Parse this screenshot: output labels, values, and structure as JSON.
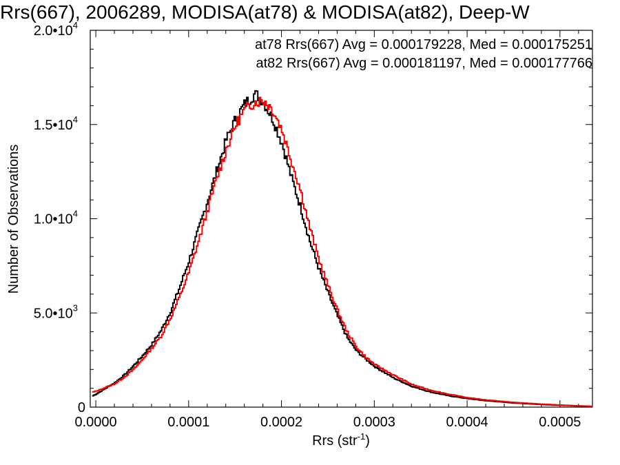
{
  "chart_data": {
    "type": "line",
    "title": "Rrs(667), 2006289, MODISA(at78) & MODISA(at82), Deep-W",
    "xlabel": "Rrs (str",
    "xlabel_sup": "-1",
    "xlabel_close": ")",
    "ylabel": "Number of Observations",
    "xlim": [
      -6e-06,
      0.000535
    ],
    "ylim": [
      0,
      20000
    ],
    "x_ticks": [
      {
        "value": 0.0,
        "label": "0.0000"
      },
      {
        "value": 0.0001,
        "label": "0.0001"
      },
      {
        "value": 0.0002,
        "label": "0.0002"
      },
      {
        "value": 0.0003,
        "label": "0.0003"
      },
      {
        "value": 0.0004,
        "label": "0.0004"
      },
      {
        "value": 0.0005,
        "label": "0.0005"
      }
    ],
    "y_ticks": [
      {
        "value": 0,
        "mant": "0",
        "exp": ""
      },
      {
        "value": 5000,
        "mant": "5.0•10",
        "exp": "3"
      },
      {
        "value": 10000,
        "mant": "1.0•10",
        "exp": "4"
      },
      {
        "value": 15000,
        "mant": "1.5•10",
        "exp": "4"
      },
      {
        "value": 20000,
        "mant": "2.0•10",
        "exp": "4"
      }
    ],
    "legend_position": "top-right",
    "series": [
      {
        "name": "at78",
        "legend": "at78 Rrs(667) Avg = 0.000179228, Med = 0.000175251",
        "color": "#000000",
        "x": [
          -4e-06,
          0.0,
          1e-05,
          2e-05,
          3e-05,
          4e-05,
          5e-05,
          6e-05,
          7e-05,
          8e-05,
          9e-05,
          0.0001,
          0.00011,
          0.00012,
          0.00013,
          0.00014,
          0.00015,
          0.00016,
          0.00017,
          0.000175,
          0.00018,
          0.00019,
          0.0002,
          0.00021,
          0.00022,
          0.00023,
          0.00024,
          0.00025,
          0.00026,
          0.00027,
          0.00028,
          0.00029,
          0.0003,
          0.00032,
          0.00034,
          0.00036,
          0.00038,
          0.0004,
          0.00042,
          0.00045,
          0.00048,
          0.0005,
          0.00052,
          0.000535
        ],
        "y": [
          600,
          700,
          1000,
          1300,
          1700,
          2200,
          2750,
          3350,
          4100,
          5100,
          6400,
          7800,
          9400,
          11000,
          12600,
          14200,
          15300,
          16100,
          16600,
          16500,
          16200,
          15300,
          14000,
          12200,
          10600,
          8800,
          7300,
          6000,
          4800,
          3700,
          3000,
          2550,
          2150,
          1550,
          1100,
          800,
          600,
          450,
          340,
          220,
          140,
          100,
          60,
          40
        ]
      },
      {
        "name": "at82",
        "legend": "at82 Rrs(667) Avg = 0.000181197, Med = 0.000177766",
        "color": "#ff0000",
        "x": [
          -4e-06,
          0.0,
          1e-05,
          2e-05,
          3e-05,
          4e-05,
          5e-05,
          6e-05,
          7e-05,
          8e-05,
          9e-05,
          0.0001,
          0.00011,
          0.00012,
          0.00013,
          0.00014,
          0.00015,
          0.00016,
          0.00017,
          0.00018,
          0.00019,
          0.0002,
          0.00021,
          0.00022,
          0.00023,
          0.00024,
          0.00025,
          0.00026,
          0.00027,
          0.00028,
          0.00029,
          0.0003,
          0.00032,
          0.00034,
          0.00036,
          0.00038,
          0.0004,
          0.00042,
          0.00045,
          0.00048,
          0.0005,
          0.00052,
          0.000535
        ],
        "y": [
          800,
          850,
          1050,
          1250,
          1600,
          2000,
          2550,
          3150,
          3800,
          4750,
          5900,
          7200,
          8800,
          10500,
          12200,
          13700,
          15000,
          15800,
          16200,
          16300,
          15800,
          14700,
          13100,
          11500,
          9500,
          7800,
          6400,
          5100,
          4000,
          3200,
          2650,
          2250,
          1700,
          1200,
          900,
          680,
          500,
          380,
          250,
          160,
          110,
          70,
          40
        ]
      }
    ]
  }
}
